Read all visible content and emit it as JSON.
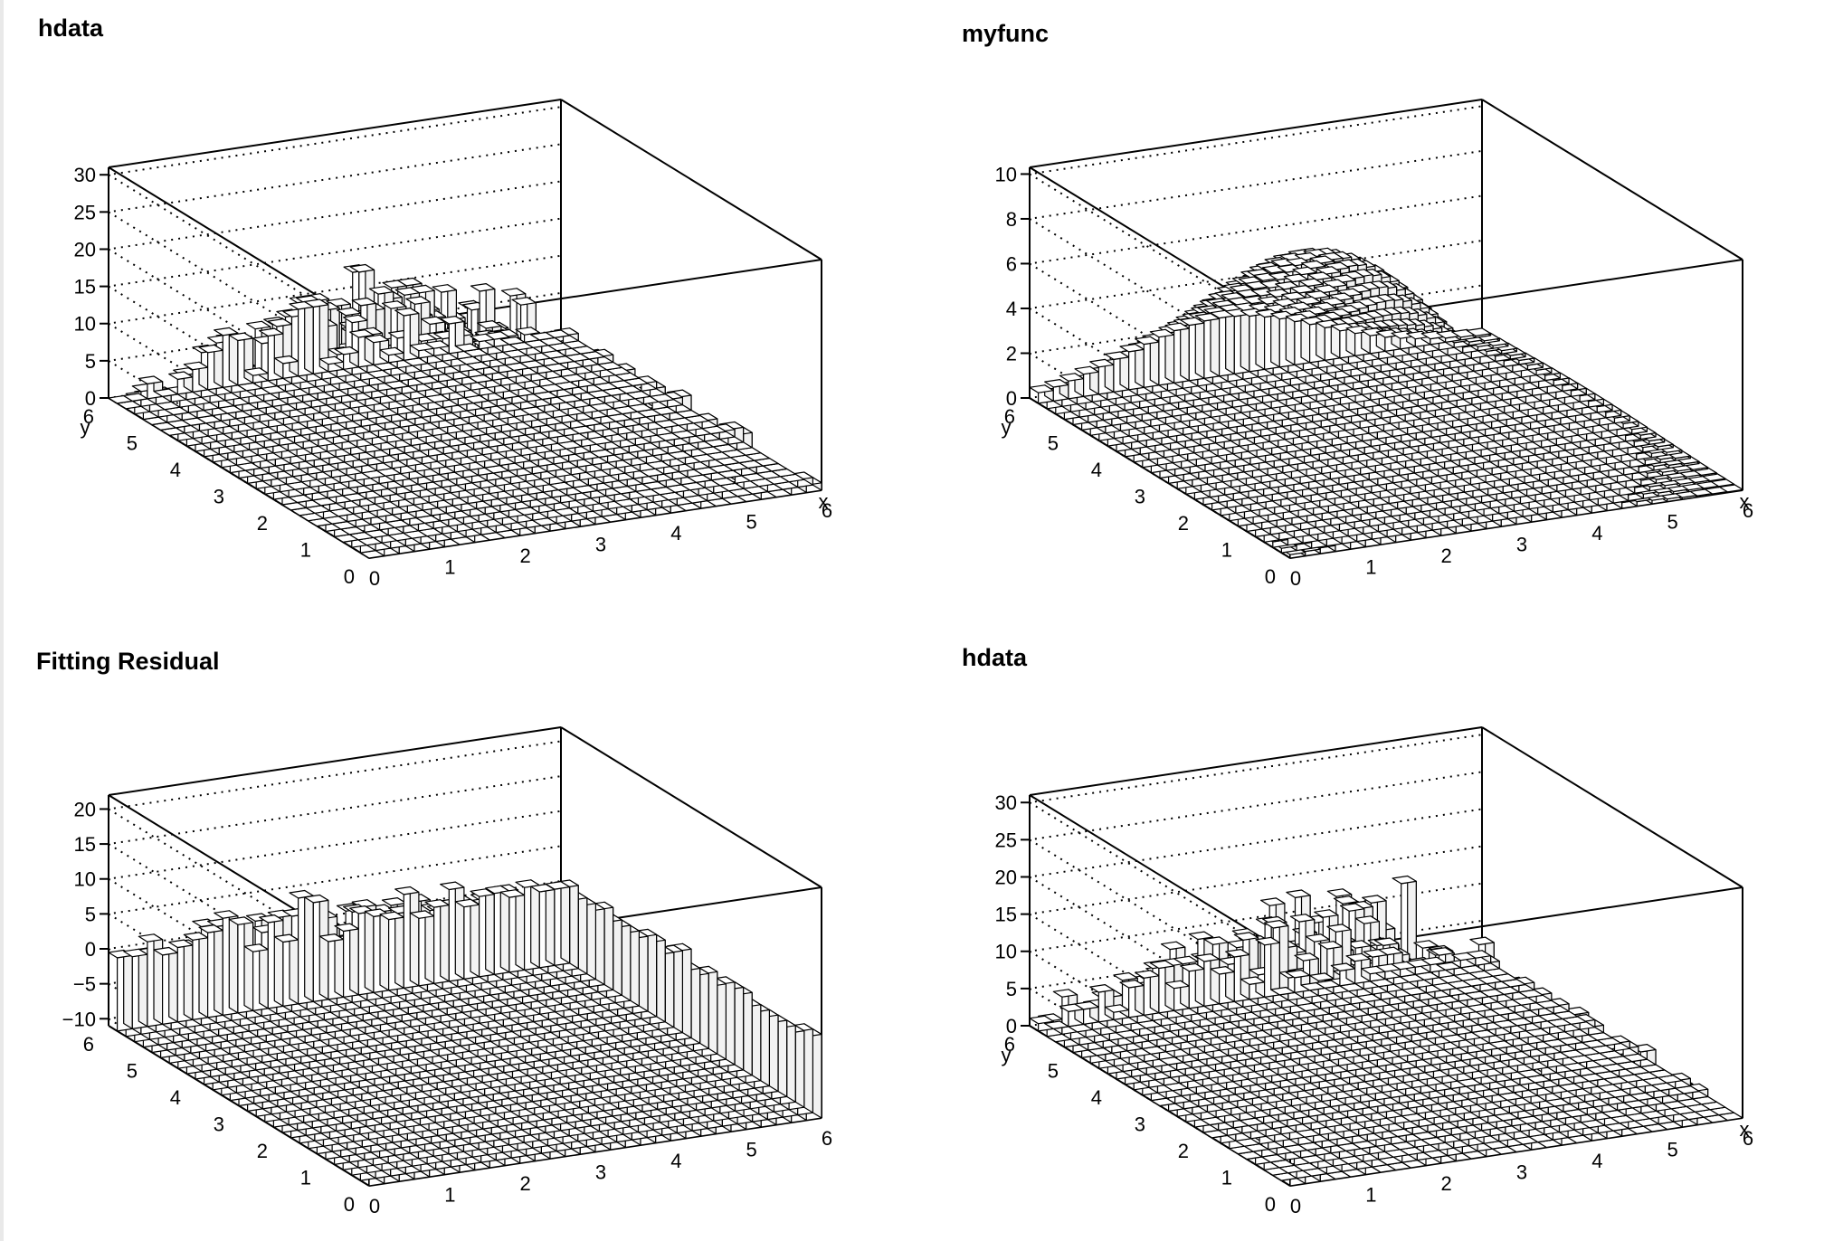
{
  "chart_data": [
    {
      "type": "lego3d",
      "title": "hdata",
      "xlabel": "x",
      "ylabel": "y",
      "xlim": [
        0,
        6
      ],
      "ylim": [
        0,
        6
      ],
      "zlim": [
        0,
        31
      ],
      "xticks": [
        "0",
        "1",
        "2",
        "3",
        "4",
        "5",
        "6"
      ],
      "yticks": [
        "0",
        "1",
        "2",
        "3",
        "4",
        "5",
        "6"
      ],
      "zticks": [
        "0",
        "5",
        "10",
        "15",
        "20",
        "25",
        "30"
      ],
      "zvalues": [
        0,
        5,
        10,
        15,
        20,
        25,
        30
      ],
      "grid": true,
      "distribution": {
        "kind": "gaussian-sample",
        "center": [
          2.5,
          3.5
        ],
        "sigma": [
          1.3,
          1.6
        ],
        "peak": 25
      }
    },
    {
      "type": "lego3d",
      "title": "myfunc",
      "xlabel": "x",
      "ylabel": "y",
      "xlim": [
        0,
        6
      ],
      "ylim": [
        0,
        6
      ],
      "zlim": [
        0,
        10.3
      ],
      "xticks": [
        "0",
        "1",
        "2",
        "3",
        "4",
        "5",
        "6"
      ],
      "yticks": [
        "0",
        "1",
        "2",
        "3",
        "4",
        "5",
        "6"
      ],
      "zticks": [
        "0",
        "2",
        "4",
        "6",
        "8",
        "10"
      ],
      "zvalues": [
        0,
        2,
        4,
        6,
        8,
        10
      ],
      "grid": true,
      "distribution": {
        "kind": "gaussian-function",
        "center": [
          2.5,
          3.5
        ],
        "sigma": [
          1.3,
          1.6
        ],
        "peak": 8
      }
    },
    {
      "type": "lego3d",
      "title": "Fitting Residual",
      "xlabel": "",
      "ylabel": "",
      "xlim": [
        0,
        6
      ],
      "ylim": [
        0,
        6
      ],
      "zlim": [
        -11,
        22
      ],
      "xticks": [
        "0",
        "1",
        "2",
        "3",
        "4",
        "5",
        "6"
      ],
      "yticks": [
        "0",
        "1",
        "2",
        "3",
        "4",
        "5",
        "6"
      ],
      "zticks": [
        "−10",
        "−5",
        "0",
        "5",
        "10",
        "15",
        "20"
      ],
      "zvalues": [
        -10,
        -5,
        0,
        5,
        10,
        15,
        20
      ],
      "grid": true,
      "distribution": {
        "kind": "residual",
        "center": [
          2.5,
          3.5
        ],
        "sigma": [
          1.3,
          1.6
        ],
        "peak": 16
      }
    },
    {
      "type": "lego3d",
      "title": "hdata",
      "xlabel": "x",
      "ylabel": "y",
      "xlim": [
        0,
        6
      ],
      "ylim": [
        0,
        6
      ],
      "zlim": [
        0,
        31
      ],
      "xticks": [
        "0",
        "1",
        "2",
        "3",
        "4",
        "5",
        "6"
      ],
      "yticks": [
        "0",
        "1",
        "2",
        "3",
        "4",
        "5",
        "6"
      ],
      "zticks": [
        "0",
        "5",
        "10",
        "15",
        "20",
        "25",
        "30"
      ],
      "zvalues": [
        0,
        5,
        10,
        15,
        20,
        25,
        30
      ],
      "grid": true,
      "distribution": {
        "kind": "gaussian-sample",
        "center": [
          2.5,
          3.5
        ],
        "sigma": [
          1.3,
          1.6
        ],
        "peak": 25
      }
    }
  ]
}
